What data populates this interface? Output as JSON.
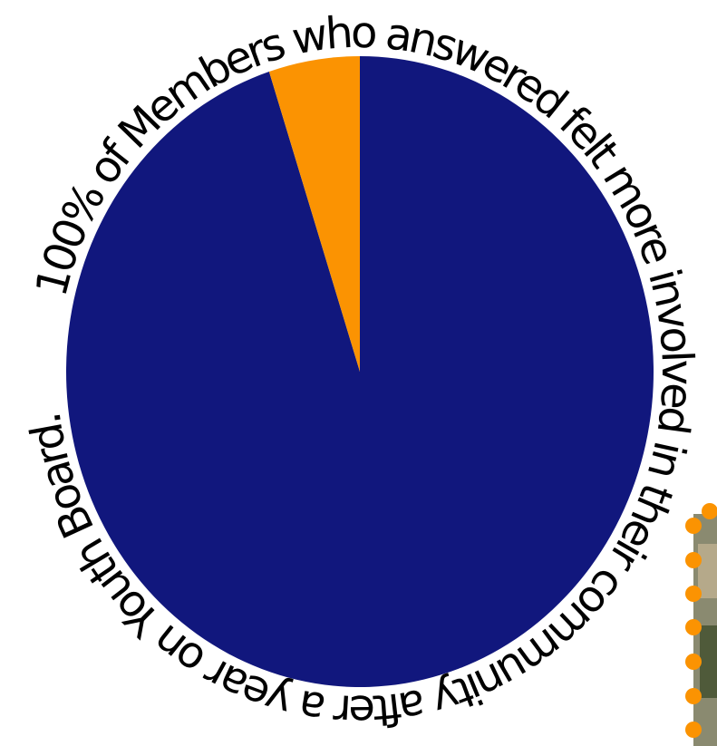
{
  "chart_data": {
    "type": "pie",
    "title": "100% of Members who answered felt more involved in their community after a year on Youth Board.",
    "values": [
      95,
      5
    ],
    "colors": [
      "#11177d",
      "#fb9302"
    ]
  }
}
